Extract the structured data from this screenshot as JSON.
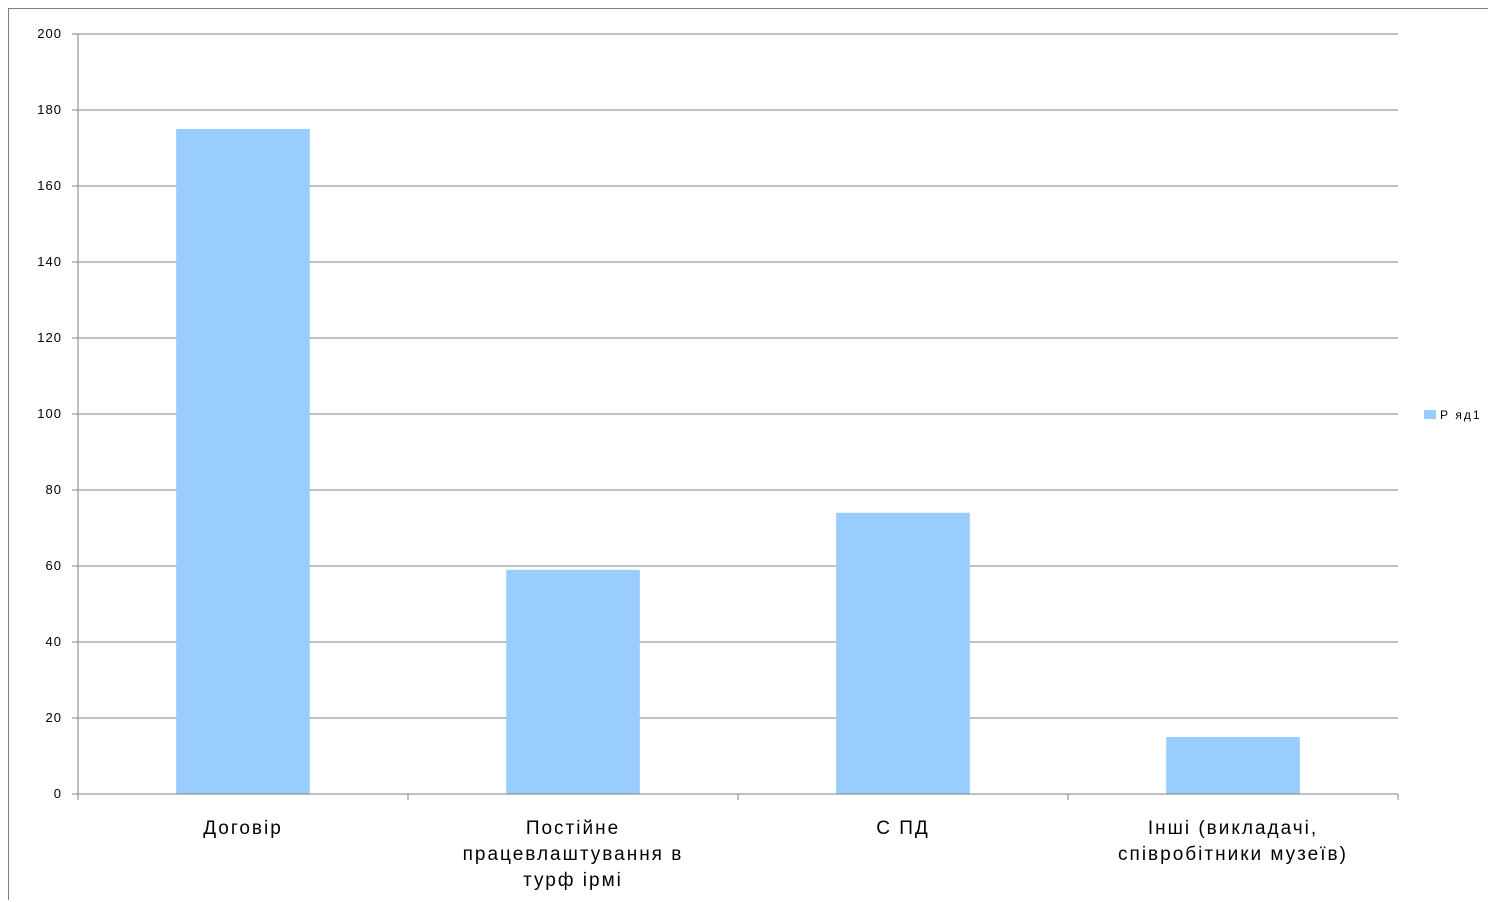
{
  "chart_data": {
    "type": "bar",
    "categories": [
      [
        "Договір"
      ],
      [
        "Постійне",
        "працевлаштування в",
        "турф ірмі"
      ],
      [
        "С ПД"
      ],
      [
        "Інші (викладачі,",
        "співробітники музеїв)"
      ]
    ],
    "series": [
      {
        "name": "Р яд1",
        "values": [
          175,
          59,
          74,
          15
        ],
        "color": "#99ccff"
      }
    ],
    "ylim": [
      0,
      200
    ],
    "yticks": [
      0,
      20,
      40,
      60,
      80,
      100,
      120,
      140,
      160,
      180,
      200
    ],
    "grid": true,
    "legend_position": "right",
    "title": "",
    "xlabel": "",
    "ylabel": ""
  }
}
